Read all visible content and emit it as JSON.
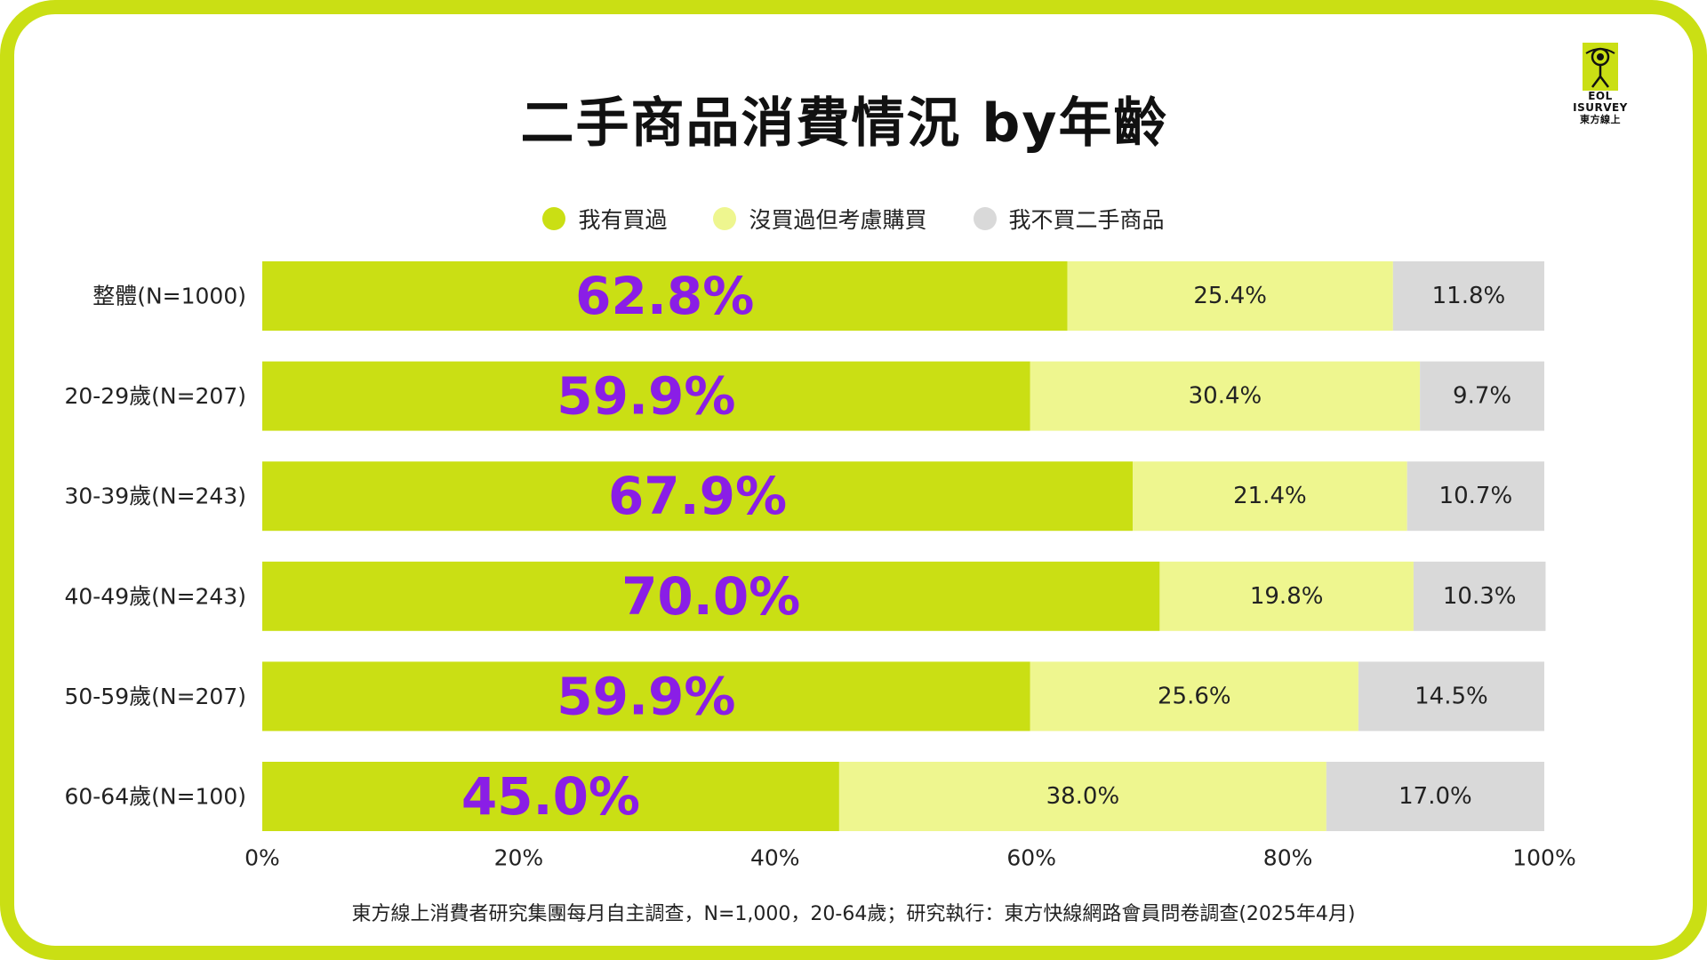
{
  "title": "二手商品消費情況  by年齡",
  "logo": {
    "line1": "EOL",
    "line2": "ISURVEY",
    "line3": "東方線上"
  },
  "footnote": "東方線上消費者研究集團每月自主調查，N=1,000，20-64歲；研究執行：東方快線網路會員問卷調查(2025年4月)",
  "colors": {
    "border": "#cadf14",
    "bought": "#cadf14",
    "considering": "#eef68f",
    "never": "#d9d9d9",
    "bought_label": "#8a1ee6",
    "text": "#222222"
  },
  "chart_data": {
    "type": "bar",
    "orientation": "horizontal",
    "stacked": true,
    "categories": [
      "整體(N=1000)",
      "20-29歲(N=207)",
      "30-39歲(N=243)",
      "40-49歲(N=243)",
      "50-59歲(N=207)",
      "60-64歲(N=100)"
    ],
    "series": [
      {
        "name": "我有買過",
        "values": [
          62.8,
          59.9,
          67.9,
          70.0,
          59.9,
          45.0
        ],
        "labels": [
          "62.8%",
          "59.9%",
          "67.9%",
          "70.0%",
          "59.9%",
          "45.0%"
        ]
      },
      {
        "name": "沒買過但考慮購買",
        "values": [
          25.4,
          30.4,
          21.4,
          19.8,
          25.6,
          38.0
        ],
        "labels": [
          "25.4%",
          "30.4%",
          "21.4%",
          "19.8%",
          "25.6%",
          "38.0%"
        ]
      },
      {
        "name": "我不買二手商品",
        "values": [
          11.8,
          9.7,
          10.7,
          10.3,
          14.5,
          17.0
        ],
        "labels": [
          "11.8%",
          "9.7%",
          "10.7%",
          "10.3%",
          "14.5%",
          "17.0%"
        ]
      }
    ],
    "x_ticks": [
      "0%",
      "20%",
      "40%",
      "60%",
      "80%",
      "100%"
    ],
    "xlim": [
      0,
      100
    ],
    "legend_position": "top-center",
    "grid": false
  }
}
